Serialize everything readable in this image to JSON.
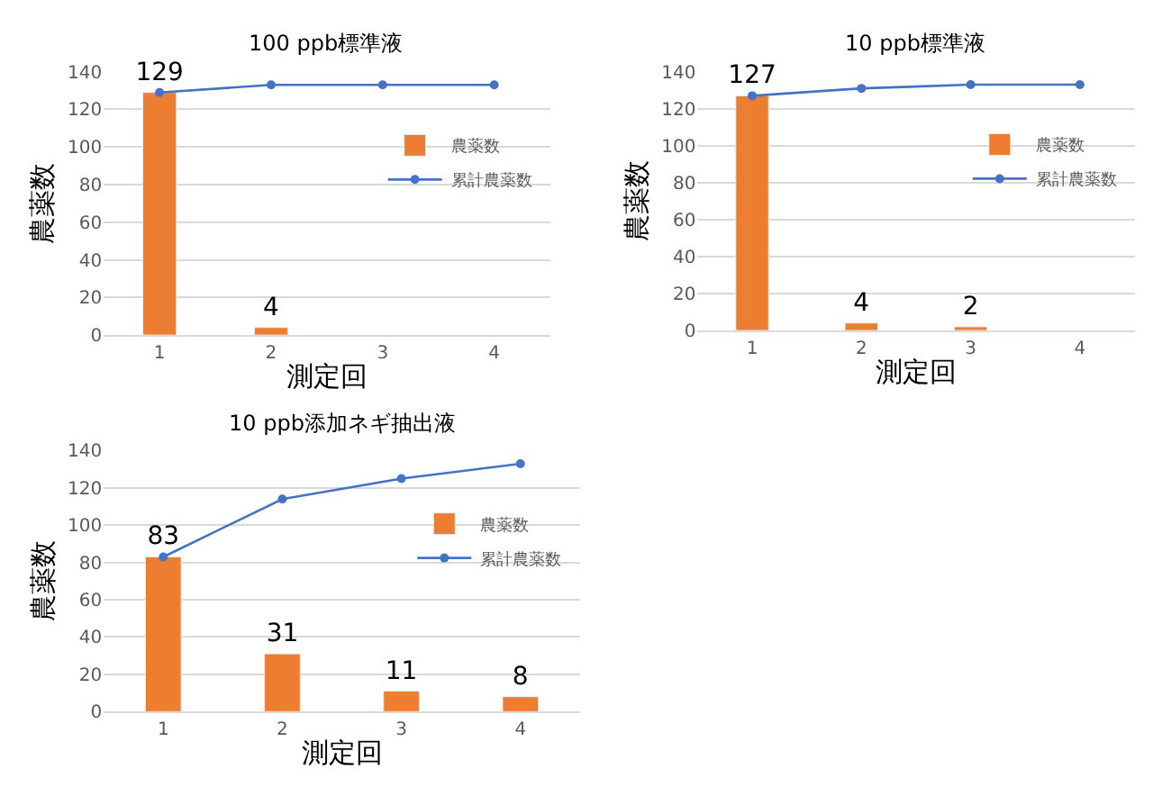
{
  "chart_data": [
    {
      "type": "bar",
      "title": "100 ppb標準液",
      "xlabel": "測定回",
      "ylabel": "農薬数",
      "categories": [
        "1",
        "2",
        "3",
        "4"
      ],
      "ylim": [
        0,
        140
      ],
      "yticks": [
        0,
        20,
        40,
        60,
        80,
        100,
        120,
        140
      ],
      "grid": "y",
      "legend": "top right",
      "series": [
        {
          "name": "農薬数",
          "color": "#ed7d31",
          "values": [
            129,
            4,
            null,
            null
          ],
          "value_labels": [
            "129",
            "4",
            null,
            null
          ]
        },
        {
          "name": "累計農薬数",
          "type": "line",
          "color": "#4472c4",
          "marker": "circle",
          "values": [
            129,
            133,
            133,
            133
          ]
        }
      ]
    },
    {
      "type": "bar",
      "title": "10 ppb標準液",
      "xlabel": "測定回",
      "ylabel": "農薬数",
      "categories": [
        "1",
        "2",
        "3",
        "4"
      ],
      "ylim": [
        0,
        140
      ],
      "yticks": [
        0,
        20,
        40,
        60,
        80,
        100,
        120,
        140
      ],
      "grid": "y",
      "legend": "top right",
      "series": [
        {
          "name": "農薬数",
          "color": "#ed7d31",
          "values": [
            127,
            4,
            2,
            null
          ],
          "value_labels": [
            "127",
            "4",
            "2",
            null
          ]
        },
        {
          "name": "累計農薬数",
          "type": "line",
          "color": "#4472c4",
          "marker": "circle",
          "values": [
            127,
            131,
            133,
            133
          ]
        }
      ]
    },
    {
      "type": "bar",
      "title": "10 ppb添加ネギ抽出液",
      "xlabel": "測定回",
      "ylabel": "農薬数",
      "categories": [
        "1",
        "2",
        "3",
        "4"
      ],
      "ylim": [
        0,
        140
      ],
      "yticks": [
        0,
        20,
        40,
        60,
        80,
        100,
        120,
        140
      ],
      "grid": "y",
      "legend": "top right",
      "series": [
        {
          "name": "農薬数",
          "color": "#ed7d31",
          "values": [
            83,
            31,
            11,
            8
          ],
          "value_labels": [
            "83",
            "31",
            "11",
            "8"
          ]
        },
        {
          "name": "累計農薬数",
          "type": "line",
          "color": "#4472c4",
          "marker": "circle",
          "values": [
            83,
            114,
            125,
            133
          ]
        }
      ]
    }
  ]
}
